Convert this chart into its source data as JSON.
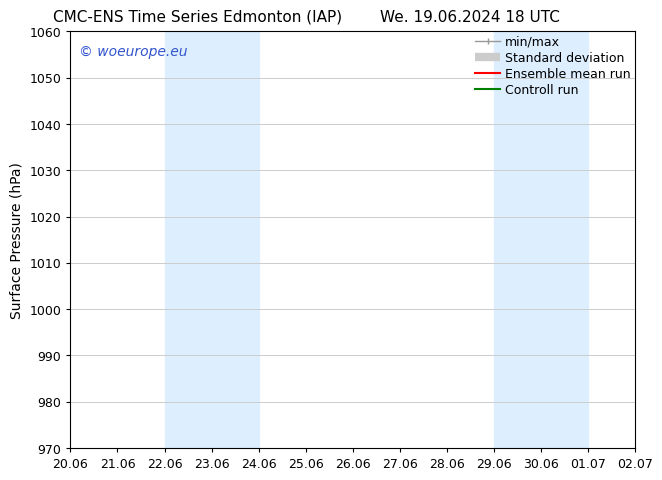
{
  "title_left": "CMC-ENS Time Series Edmonton (IAP)",
  "title_right": "We. 19.06.2024 18 UTC",
  "ylabel": "Surface Pressure (hPa)",
  "ylim": [
    970,
    1060
  ],
  "yticks": [
    970,
    980,
    990,
    1000,
    1010,
    1020,
    1030,
    1040,
    1050,
    1060
  ],
  "xtick_labels": [
    "20.06",
    "21.06",
    "22.06",
    "23.06",
    "24.06",
    "25.06",
    "26.06",
    "27.06",
    "28.06",
    "29.06",
    "30.06",
    "01.07",
    "02.07"
  ],
  "xtick_positions": [
    0,
    1,
    2,
    3,
    4,
    5,
    6,
    7,
    8,
    9,
    10,
    11,
    12
  ],
  "shaded_bands": [
    {
      "x_start": 2,
      "x_end": 4
    },
    {
      "x_start": 9,
      "x_end": 11
    }
  ],
  "shade_color": "#ddeeff",
  "watermark_text": "© woeurope.eu",
  "watermark_color": "#3355cc",
  "bg_color": "#ffffff",
  "grid_color": "#cccccc",
  "tick_color": "#000000",
  "spine_color": "#000000",
  "title_fontsize": 11,
  "label_fontsize": 10,
  "tick_fontsize": 9,
  "legend_fontsize": 9,
  "watermark_fontsize": 10
}
